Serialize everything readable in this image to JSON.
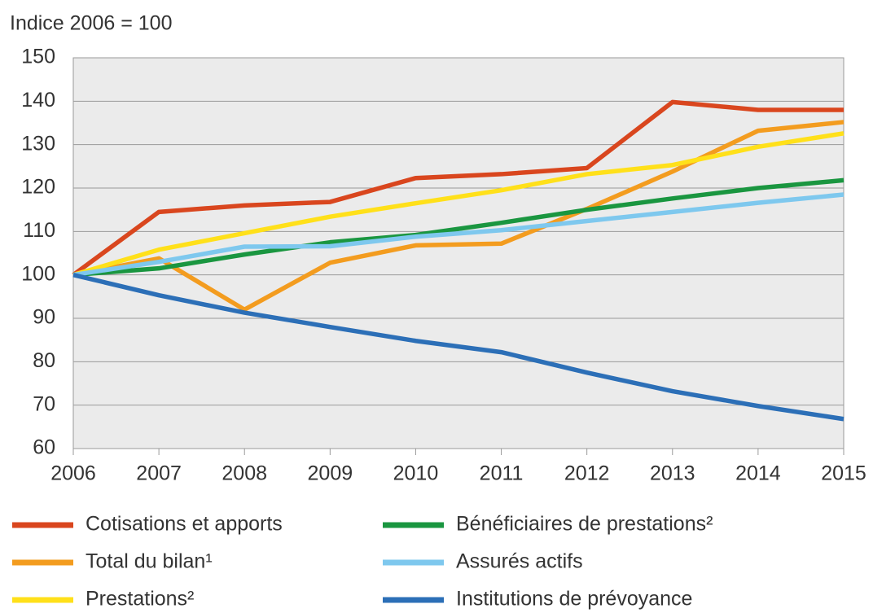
{
  "chart_data": {
    "type": "line",
    "ylabel": "Indice 2006 = 100",
    "x": [
      2006,
      2007,
      2008,
      2009,
      2010,
      2011,
      2012,
      2013,
      2014,
      2015
    ],
    "xlim": [
      2006,
      2015
    ],
    "xticks": [
      2006,
      2007,
      2008,
      2009,
      2010,
      2011,
      2012,
      2013,
      2014,
      2015
    ],
    "ylim": [
      60,
      150
    ],
    "yticks": [
      60,
      70,
      80,
      90,
      100,
      110,
      120,
      130,
      140,
      150
    ],
    "grid": true,
    "legend": "bottom",
    "series": [
      {
        "name": "Cotisations et apports",
        "color": "#d9461e",
        "values": [
          100,
          114.5,
          116,
          116.8,
          122.3,
          123.2,
          124.6,
          139.8,
          138,
          138
        ]
      },
      {
        "name": "Total du bilan¹",
        "color": "#f39c1f",
        "values": [
          100,
          103.8,
          92,
          102.8,
          106.8,
          107.2,
          115.2,
          123.8,
          133.2,
          135.2
        ]
      },
      {
        "name": "Prestations²",
        "color": "#ffe01a",
        "values": [
          100,
          105.8,
          109.6,
          113.4,
          116.5,
          119.5,
          123.2,
          125.3,
          129.5,
          132.6
        ]
      },
      {
        "name": "Bénéficiaires de prestations²",
        "color": "#1a9640",
        "values": [
          100,
          101.5,
          104.7,
          107.5,
          109.2,
          112,
          115,
          117.6,
          120,
          121.8
        ]
      },
      {
        "name": "Assurés actifs",
        "color": "#7ec8ee",
        "values": [
          100,
          103,
          106.5,
          106.6,
          108.8,
          110.3,
          112.4,
          114.5,
          116.6,
          118.5
        ]
      },
      {
        "name": "Institutions de prévoyance",
        "color": "#2c6fb7",
        "values": [
          100,
          95.3,
          91.3,
          88,
          84.8,
          82.2,
          77.5,
          73.2,
          69.8,
          66.8
        ]
      }
    ]
  }
}
